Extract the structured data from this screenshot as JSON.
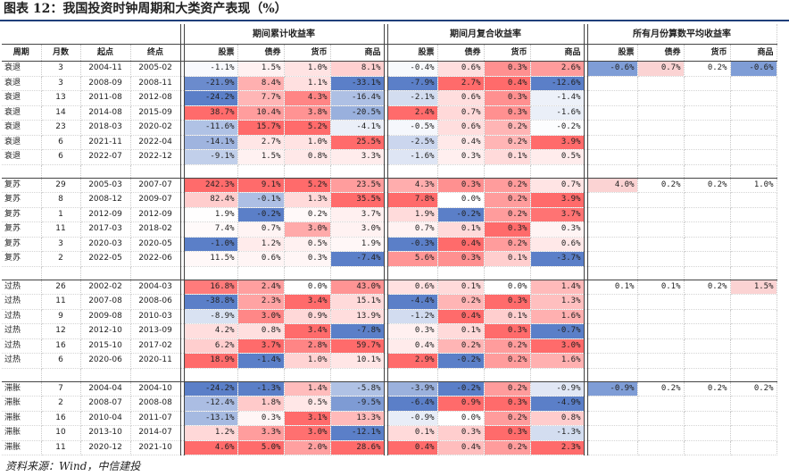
{
  "title": "图表 12：我国投资时钟周期和大类资产表现（%）",
  "source": "资料来源：Wind，中信建投",
  "header": {
    "group1": "期间累计收益率",
    "group2": "期间月复合收益率",
    "group3": "所有月份算数平均收益率",
    "cols": [
      "周期",
      "月数",
      "起点",
      "终点"
    ],
    "assets": [
      "股票",
      "债券",
      "货币",
      "商品"
    ]
  },
  "colors": {
    "pos_strong": "#f26b6b",
    "neg_strong": "#5b7fc8",
    "rule": "#1f3f7a"
  },
  "groups": [
    {
      "name": "衰退",
      "rows": [
        {
          "phase": "衰退",
          "months": "3",
          "start": "2004-11",
          "end": "2005-02",
          "cum": [
            "-1.1%",
            "1.5%",
            "1.0%",
            "8.1%"
          ],
          "mon": [
            "-0.4%",
            "0.6%",
            "0.3%",
            "2.6%"
          ]
        },
        {
          "phase": "衰退",
          "months": "3",
          "start": "2008-09",
          "end": "2008-11",
          "cum": [
            "-21.9%",
            "8.4%",
            "1.1%",
            "-33.1%"
          ],
          "mon": [
            "-7.9%",
            "2.7%",
            "0.4%",
            "-12.6%"
          ]
        },
        {
          "phase": "衰退",
          "months": "13",
          "start": "2011-08",
          "end": "2012-08",
          "cum": [
            "-24.2%",
            "7.7%",
            "4.3%",
            "-16.4%"
          ],
          "mon": [
            "-2.1%",
            "0.6%",
            "0.3%",
            "-1.4%"
          ]
        },
        {
          "phase": "衰退",
          "months": "14",
          "start": "2014-08",
          "end": "2015-09",
          "cum": [
            "38.7%",
            "10.4%",
            "3.8%",
            "-20.5%"
          ],
          "mon": [
            "2.4%",
            "0.7%",
            "0.3%",
            "-1.6%"
          ]
        },
        {
          "phase": "衰退",
          "months": "23",
          "start": "2018-03",
          "end": "2020-02",
          "cum": [
            "-11.6%",
            "15.7%",
            "5.2%",
            "-4.1%"
          ],
          "mon": [
            "-0.5%",
            "0.6%",
            "0.2%",
            "-0.2%"
          ]
        },
        {
          "phase": "衰退",
          "months": "6",
          "start": "2021-11",
          "end": "2022-04",
          "cum": [
            "-14.1%",
            "2.7%",
            "1.0%",
            "25.5%"
          ],
          "mon": [
            "-2.5%",
            "0.4%",
            "0.2%",
            "3.9%"
          ]
        },
        {
          "phase": "衰退",
          "months": "6",
          "start": "2022-07",
          "end": "2022-12",
          "cum": [
            "-9.1%",
            "1.5%",
            "0.8%",
            "3.3%"
          ],
          "mon": [
            "-1.6%",
            "0.3%",
            "0.1%",
            "0.5%"
          ]
        }
      ],
      "avg": [
        "-0.6%",
        "0.7%",
        "0.2%",
        "-0.6%"
      ]
    },
    {
      "name": "复苏",
      "rows": [
        {
          "phase": "复苏",
          "months": "29",
          "start": "2005-03",
          "end": "2007-07",
          "cum": [
            "242.3%",
            "9.1%",
            "5.2%",
            "23.5%"
          ],
          "mon": [
            "4.3%",
            "0.3%",
            "0.2%",
            "0.7%"
          ]
        },
        {
          "phase": "复苏",
          "months": "8",
          "start": "2008-12",
          "end": "2009-07",
          "cum": [
            "82.4%",
            "-0.1%",
            "1.3%",
            "35.5%"
          ],
          "mon": [
            "7.8%",
            "0.0%",
            "0.2%",
            "3.9%"
          ]
        },
        {
          "phase": "复苏",
          "months": "1",
          "start": "2012-09",
          "end": "2012-09",
          "cum": [
            "1.9%",
            "-0.2%",
            "0.2%",
            "3.7%"
          ],
          "mon": [
            "1.9%",
            "-0.2%",
            "0.2%",
            "3.7%"
          ]
        },
        {
          "phase": "复苏",
          "months": "11",
          "start": "2017-03",
          "end": "2018-02",
          "cum": [
            "7.4%",
            "0.7%",
            "3.0%",
            "3.0%"
          ],
          "mon": [
            "0.7%",
            "0.1%",
            "0.3%",
            "0.3%"
          ]
        },
        {
          "phase": "复苏",
          "months": "3",
          "start": "2020-03",
          "end": "2020-05",
          "cum": [
            "-1.0%",
            "1.2%",
            "0.5%",
            "1.9%"
          ],
          "mon": [
            "-0.3%",
            "0.4%",
            "0.2%",
            "0.6%"
          ]
        },
        {
          "phase": "复苏",
          "months": "2",
          "start": "2022-05",
          "end": "2022-06",
          "cum": [
            "11.5%",
            "0.6%",
            "0.3%",
            "-7.4%"
          ],
          "mon": [
            "5.6%",
            "0.3%",
            "0.1%",
            "-3.7%"
          ]
        }
      ],
      "avg": [
        "4.0%",
        "0.2%",
        "0.2%",
        "1.0%"
      ]
    },
    {
      "name": "过热",
      "rows": [
        {
          "phase": "过热",
          "months": "26",
          "start": "2002-02",
          "end": "2004-03",
          "cum": [
            "16.8%",
            "2.4%",
            "0.0%",
            "43.0%"
          ],
          "mon": [
            "0.6%",
            "0.1%",
            "0.0%",
            "1.4%"
          ]
        },
        {
          "phase": "过热",
          "months": "11",
          "start": "2007-08",
          "end": "2008-06",
          "cum": [
            "-38.8%",
            "2.3%",
            "3.4%",
            "15.1%"
          ],
          "mon": [
            "-4.4%",
            "0.2%",
            "0.3%",
            "1.3%"
          ]
        },
        {
          "phase": "过热",
          "months": "9",
          "start": "2009-08",
          "end": "2010-03",
          "cum": [
            "-8.9%",
            "3.0%",
            "0.9%",
            "13.9%"
          ],
          "mon": [
            "-1.2%",
            "0.4%",
            "0.1%",
            "1.6%"
          ]
        },
        {
          "phase": "过热",
          "months": "12",
          "start": "2012-10",
          "end": "2013-09",
          "cum": [
            "4.2%",
            "0.8%",
            "3.4%",
            "-7.8%"
          ],
          "mon": [
            "0.3%",
            "0.1%",
            "0.3%",
            "-0.7%"
          ]
        },
        {
          "phase": "过热",
          "months": "16",
          "start": "2015-10",
          "end": "2017-02",
          "cum": [
            "6.2%",
            "3.7%",
            "2.8%",
            "59.7%"
          ],
          "mon": [
            "0.4%",
            "0.2%",
            "0.2%",
            "3.0%"
          ]
        },
        {
          "phase": "过热",
          "months": "6",
          "start": "2020-06",
          "end": "2020-11",
          "cum": [
            "18.9%",
            "-1.4%",
            "1.0%",
            "10.1%"
          ],
          "mon": [
            "2.9%",
            "-0.2%",
            "0.2%",
            "1.6%"
          ]
        }
      ],
      "avg": [
        "0.1%",
        "0.1%",
        "0.2%",
        "1.5%"
      ]
    },
    {
      "name": "滞胀",
      "rows": [
        {
          "phase": "滞胀",
          "months": "7",
          "start": "2004-04",
          "end": "2004-10",
          "cum": [
            "-24.2%",
            "-1.3%",
            "1.4%",
            "-5.8%"
          ],
          "mon": [
            "-3.9%",
            "-0.2%",
            "0.2%",
            "-0.9%"
          ]
        },
        {
          "phase": "滞胀",
          "months": "2",
          "start": "2008-07",
          "end": "2008-08",
          "cum": [
            "-12.4%",
            "1.8%",
            "0.5%",
            "-9.5%"
          ],
          "mon": [
            "-6.4%",
            "0.9%",
            "0.3%",
            "-4.9%"
          ]
        },
        {
          "phase": "滞胀",
          "months": "16",
          "start": "2010-04",
          "end": "2011-07",
          "cum": [
            "-13.1%",
            "0.3%",
            "3.1%",
            "13.3%"
          ],
          "mon": [
            "-0.9%",
            "0.0%",
            "0.2%",
            "0.8%"
          ]
        },
        {
          "phase": "滞胀",
          "months": "10",
          "start": "2013-10",
          "end": "2014-07",
          "cum": [
            "1.2%",
            "3.3%",
            "3.0%",
            "-12.1%"
          ],
          "mon": [
            "0.1%",
            "0.3%",
            "0.3%",
            "-1.3%"
          ]
        },
        {
          "phase": "滞胀",
          "months": "11",
          "start": "2020-12",
          "end": "2021-10",
          "cum": [
            "4.6%",
            "5.0%",
            "2.0%",
            "28.6%"
          ],
          "mon": [
            "0.4%",
            "0.4%",
            "0.2%",
            "2.3%"
          ]
        }
      ],
      "avg": [
        "-0.9%",
        "0.2%",
        "0.2%",
        "0.2%"
      ]
    }
  ]
}
